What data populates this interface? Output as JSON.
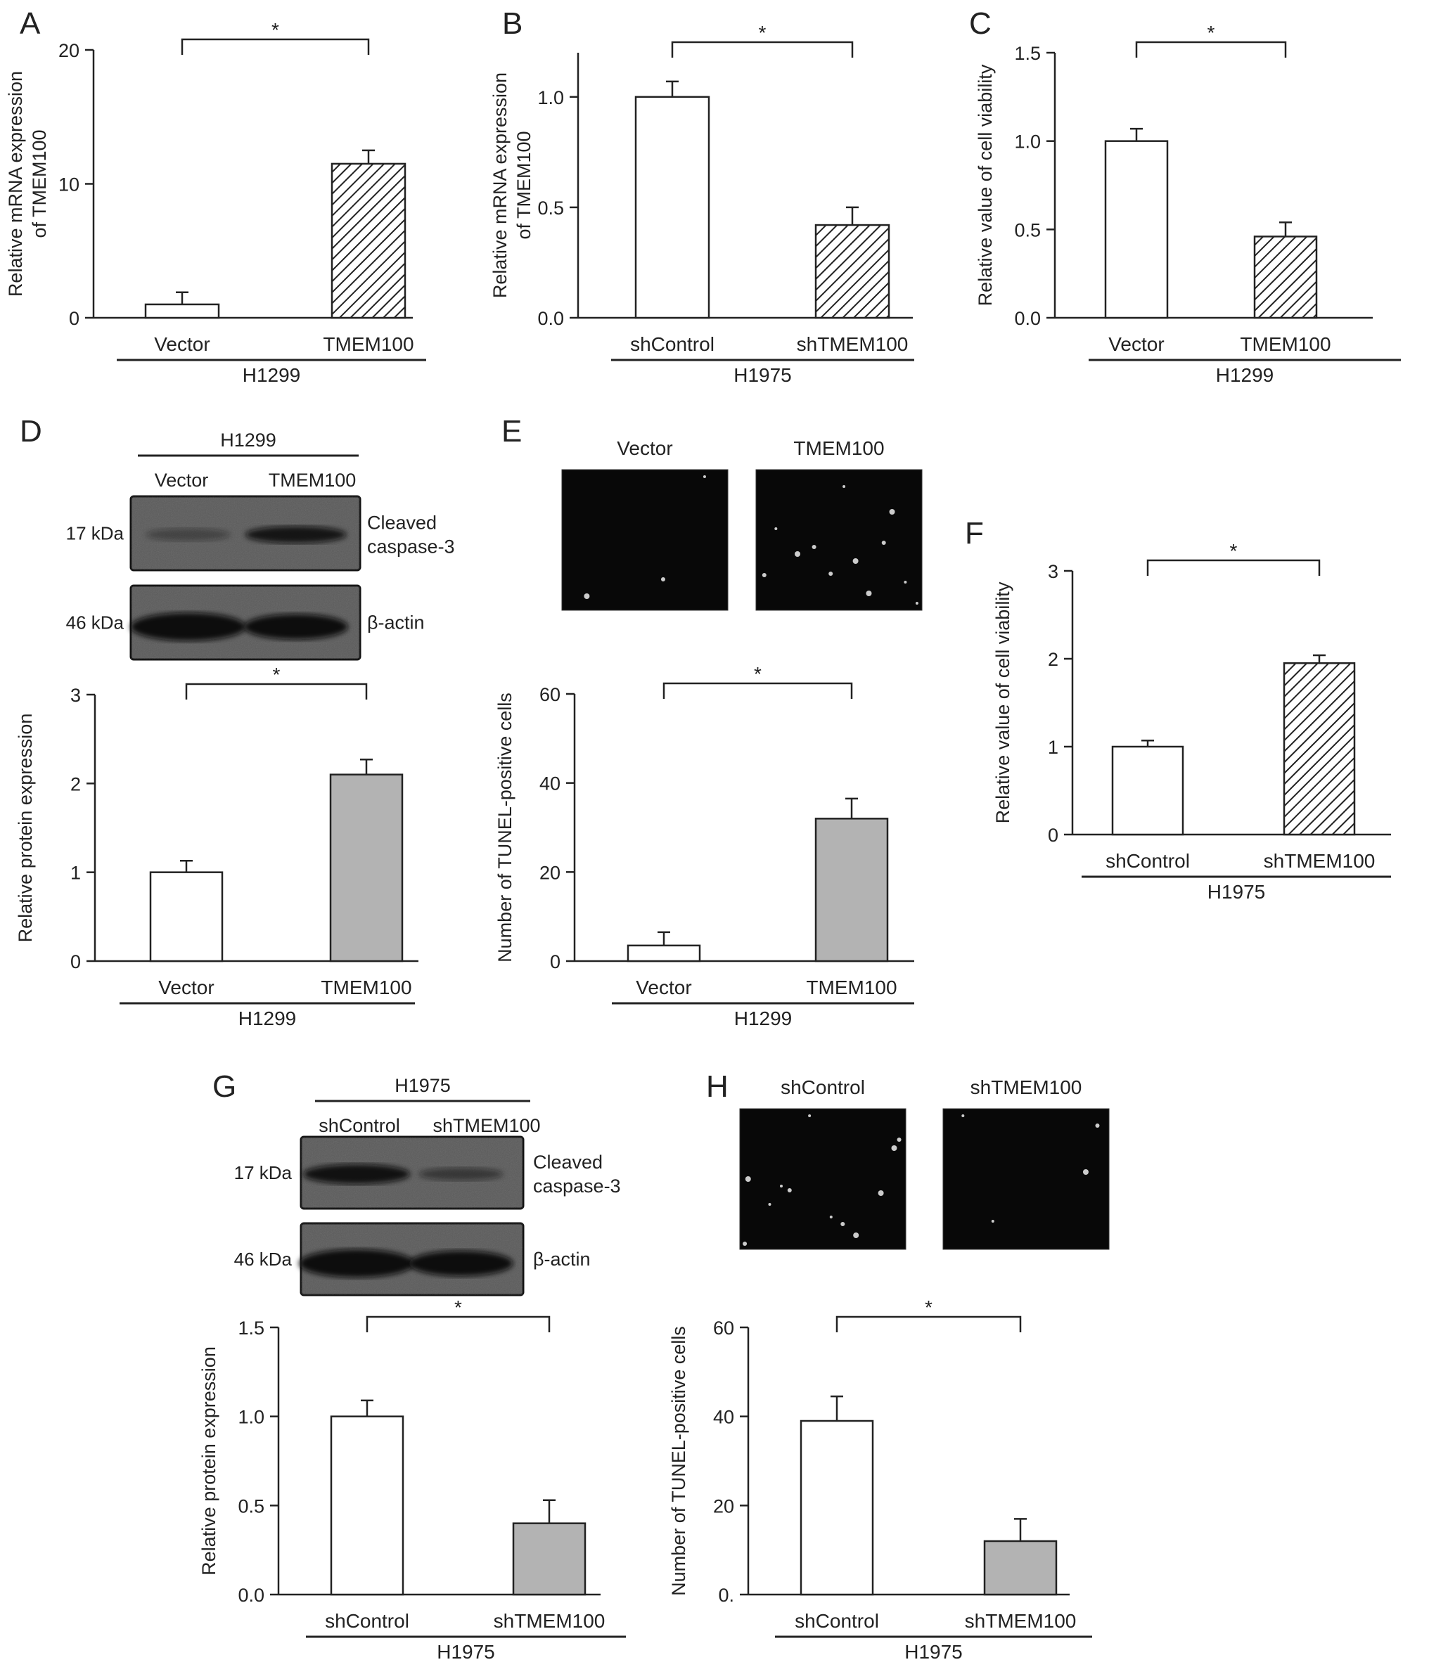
{
  "figure": {
    "panels": [
      {
        "label": "A",
        "type": "bar",
        "group": "H1299",
        "ylabel": [
          "Relative mRNA expression",
          "of TMEM100"
        ],
        "ylim": [
          0,
          20
        ],
        "ticks": [
          "0",
          "10",
          "20"
        ],
        "categories": [
          "Vector",
          "TMEM100"
        ],
        "values": [
          1.0,
          11.5
        ],
        "errors": [
          0.9,
          1.0
        ],
        "fills": [
          "white",
          "hatch"
        ],
        "significance": "*"
      },
      {
        "label": "B",
        "type": "bar",
        "group": "H1975",
        "ylabel": [
          "Relative mRNA expression",
          "of TMEM100"
        ],
        "ylim": [
          0,
          1.2
        ],
        "ticks": [
          "0.0",
          "0.5",
          "1.0"
        ],
        "categories": [
          "shControl",
          "shTMEM100"
        ],
        "values": [
          1.0,
          0.42
        ],
        "errors": [
          0.07,
          0.08
        ],
        "fills": [
          "white",
          "hatch"
        ],
        "significance": "*"
      },
      {
        "label": "C",
        "type": "bar",
        "group": "H1299",
        "ylabel": [
          "Relative value of cell viability"
        ],
        "ylim": [
          0,
          1.5
        ],
        "ticks": [
          "0.0",
          "0.5",
          "1.0",
          "1.5"
        ],
        "categories": [
          "Vector",
          "TMEM100"
        ],
        "values": [
          1.0,
          0.46
        ],
        "errors": [
          0.07,
          0.08
        ],
        "fills": [
          "white",
          "hatch"
        ],
        "significance": "*"
      },
      {
        "label": "D",
        "type": "bar",
        "group": "H1299",
        "ylabel": [
          "Relative protein expression"
        ],
        "ylim": [
          0,
          3
        ],
        "ticks": [
          "0",
          "1",
          "2",
          "3"
        ],
        "categories": [
          "Vector",
          "TMEM100"
        ],
        "values": [
          1.0,
          2.1
        ],
        "errors": [
          0.13,
          0.17
        ],
        "fills": [
          "white",
          "gray"
        ],
        "significance": "*"
      },
      {
        "label": "E",
        "type": "bar",
        "group": "H1299",
        "ylabel": [
          "Number of TUNEL-positive cells"
        ],
        "ylim": [
          0,
          60
        ],
        "ticks": [
          "0",
          "20",
          "40",
          "60"
        ],
        "categories": [
          "Vector",
          "TMEM100"
        ],
        "values": [
          3.5,
          32.0
        ],
        "errors": [
          3.0,
          4.5
        ],
        "fills": [
          "white",
          "gray"
        ],
        "significance": "*"
      },
      {
        "label": "F",
        "type": "bar",
        "group": "H1975",
        "ylabel": [
          "Relative value of cell viability"
        ],
        "ylim": [
          0,
          3
        ],
        "ticks": [
          "0",
          "1",
          "2",
          "3"
        ],
        "categories": [
          "shControl",
          "shTMEM100"
        ],
        "values": [
          1.0,
          1.95
        ],
        "errors": [
          0.07,
          0.09
        ],
        "fills": [
          "white",
          "hatch"
        ],
        "significance": "*"
      },
      {
        "label": "G",
        "type": "bar",
        "group": "H1975",
        "ylabel": [
          "Relative protein expression"
        ],
        "ylim": [
          0,
          1.5
        ],
        "ticks": [
          "0.0",
          "0.5",
          "1.0",
          "1.5"
        ],
        "categories": [
          "shControl",
          "shTMEM100"
        ],
        "values": [
          1.0,
          0.4
        ],
        "errors": [
          0.09,
          0.13
        ],
        "fills": [
          "white",
          "gray"
        ],
        "significance": "*"
      },
      {
        "label": "H",
        "type": "bar",
        "group": "H1975",
        "ylabel": [
          "Number of TUNEL-positive cells"
        ],
        "ylim": [
          0,
          60
        ],
        "ticks": [
          "0.",
          "20",
          "40",
          "60"
        ],
        "categories": [
          "shControl",
          "shTMEM100"
        ],
        "values": [
          39.0,
          12.0
        ],
        "errors": [
          5.5,
          5.0
        ],
        "fills": [
          "white",
          "gray"
        ],
        "significance": "*"
      }
    ],
    "blots": [
      {
        "panel": "D",
        "group": "H1299",
        "lanes": [
          "Vector",
          "TMEM100"
        ],
        "rows": [
          {
            "kda": "17 kDa",
            "label": [
              "Cleaved",
              "caspase-3"
            ]
          },
          {
            "kda": "46 kDa",
            "label": [
              "β-actin"
            ]
          }
        ]
      },
      {
        "panel": "G",
        "group": "H1975",
        "lanes": [
          "shControl",
          "shTMEM100"
        ],
        "rows": [
          {
            "kda": "17 kDa",
            "label": [
              "Cleaved",
              "caspase-3"
            ]
          },
          {
            "kda": "46 kDa",
            "label": [
              "β-actin"
            ]
          }
        ]
      }
    ],
    "micrographs": [
      {
        "panel": "E",
        "titles": [
          "Vector",
          "TMEM100"
        ]
      },
      {
        "panel": "H",
        "titles": [
          "shControl",
          "shTMEM100"
        ]
      }
    ],
    "colors": {
      "bar_gray": "#b3b3b3",
      "blot_bg": "#5a5a5a",
      "micro_bg": "#080808",
      "ink": "#222222"
    }
  }
}
